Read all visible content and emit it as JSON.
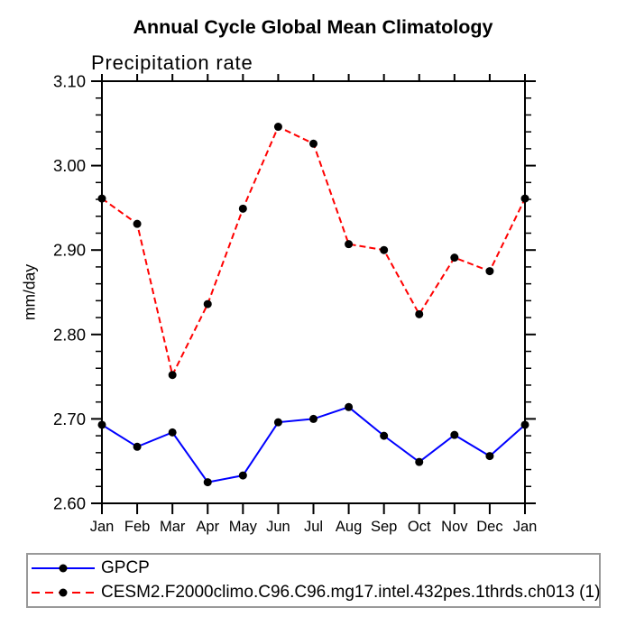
{
  "chart_data": {
    "type": "line",
    "title": "Annual Cycle Global Mean Climatology",
    "left_subtitle": "Precipitation rate",
    "ylabel": "mm/day",
    "xlabel": "",
    "categories": [
      "Jan",
      "Feb",
      "Mar",
      "Apr",
      "May",
      "Jun",
      "Jul",
      "Aug",
      "Sep",
      "Oct",
      "Nov",
      "Dec",
      "Jan"
    ],
    "series": [
      {
        "name": "GPCP",
        "color": "#0000ff",
        "line_style": "solid",
        "marker": "filled-circle",
        "marker_color": "#000000",
        "values": [
          2.693,
          2.667,
          2.684,
          2.625,
          2.633,
          2.696,
          2.7,
          2.714,
          2.68,
          2.649,
          2.681,
          2.656,
          2.693
        ]
      },
      {
        "name": "CESM2.F2000climo.C96.C96.mg17.intel.432pes.1thrds.ch013 (1)",
        "color": "#ff0000",
        "line_style": "dashed",
        "marker": "filled-circle",
        "marker_color": "#000000",
        "values": [
          2.961,
          2.931,
          2.752,
          2.836,
          2.949,
          3.046,
          3.026,
          2.907,
          2.9,
          2.824,
          2.891,
          2.875,
          2.961
        ]
      }
    ],
    "ylim": [
      2.6,
      3.1
    ],
    "ytick_labels": [
      "2.60",
      "2.70",
      "2.80",
      "2.90",
      "3.00",
      "3.10"
    ],
    "ytick_interval_major": 0.1,
    "ytick_interval_minor": 0.02,
    "grid": false,
    "legend_position": "bottom-left",
    "axis_color": "#000000",
    "legend_border_color": "#999999",
    "background_color": "#ffffff"
  }
}
